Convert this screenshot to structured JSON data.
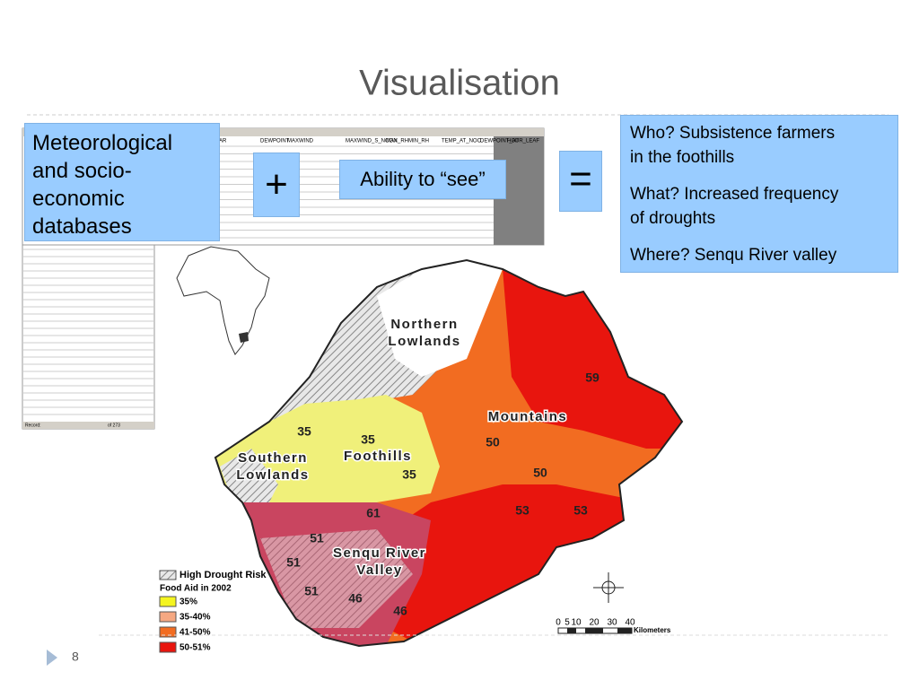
{
  "title": "Visualisation",
  "left_box": {
    "lines": [
      "Meteorological",
      "and socio-",
      "economic",
      "databases"
    ]
  },
  "plus": "+",
  "ability": "Ability to “see”",
  "equals": "=",
  "right_box": {
    "lines": [
      "Who? Subsistence farmers",
      "in the foothills",
      "What? Increased frequency",
      "of droughts",
      "Where? Senqu River valley"
    ]
  },
  "spreadsheet": {
    "columns": [
      "AR",
      "DEWPOINT",
      "MAXWIND",
      "MAXWIND_S_NOON",
      "MAX_RH",
      "MIN_RH",
      "TEMP_AT_NOO",
      "DEWPOINT_AT",
      "HOUR_LEAF"
    ],
    "record": "Record:",
    "count": "of 273"
  },
  "map": {
    "region_labels": [
      [
        "Northern",
        "Lowlands"
      ],
      [
        "Mountains"
      ],
      [
        "Foothills"
      ],
      [
        "Southern",
        "Lowlands"
      ],
      [
        "Senqu River",
        "Valley"
      ]
    ],
    "values": [
      59,
      50,
      50,
      53,
      53,
      35,
      35,
      35,
      61,
      51,
      51,
      51,
      46,
      46
    ],
    "legend": {
      "hatch": "High Drought Risk",
      "title": "Food Aid in 2002",
      "items": [
        "35%",
        "35-40%",
        "41-50%",
        "50-51%"
      ]
    },
    "scale": [
      "0",
      "5",
      "10",
      "20",
      "30",
      "40",
      "Kilometers"
    ]
  },
  "page_number": "8"
}
